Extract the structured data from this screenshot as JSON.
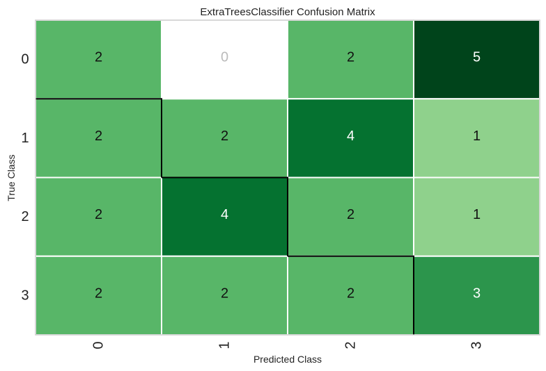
{
  "chart_data": {
    "type": "heatmap",
    "title": "ExtraTreesClassifier Confusion Matrix",
    "xlabel": "Predicted Class",
    "ylabel": "True Class",
    "x_categories": [
      "0",
      "1",
      "2",
      "3"
    ],
    "y_categories": [
      "0",
      "1",
      "2",
      "3"
    ],
    "values": [
      [
        2,
        0,
        2,
        5
      ],
      [
        2,
        2,
        4,
        1
      ],
      [
        2,
        4,
        2,
        1
      ],
      [
        2,
        2,
        2,
        3
      ]
    ],
    "value_range": [
      0,
      5
    ],
    "colormap": "greens",
    "diagonal_outlined": true,
    "colors": {
      "zero_cell": "#ffffff",
      "zero_text": "#bbbbbb",
      "dark_text": "#111111",
      "light_text": "#ffffff",
      "grid_line": "#ffffff",
      "diagonal_border": "#000000",
      "frame": "#cccccc"
    }
  }
}
